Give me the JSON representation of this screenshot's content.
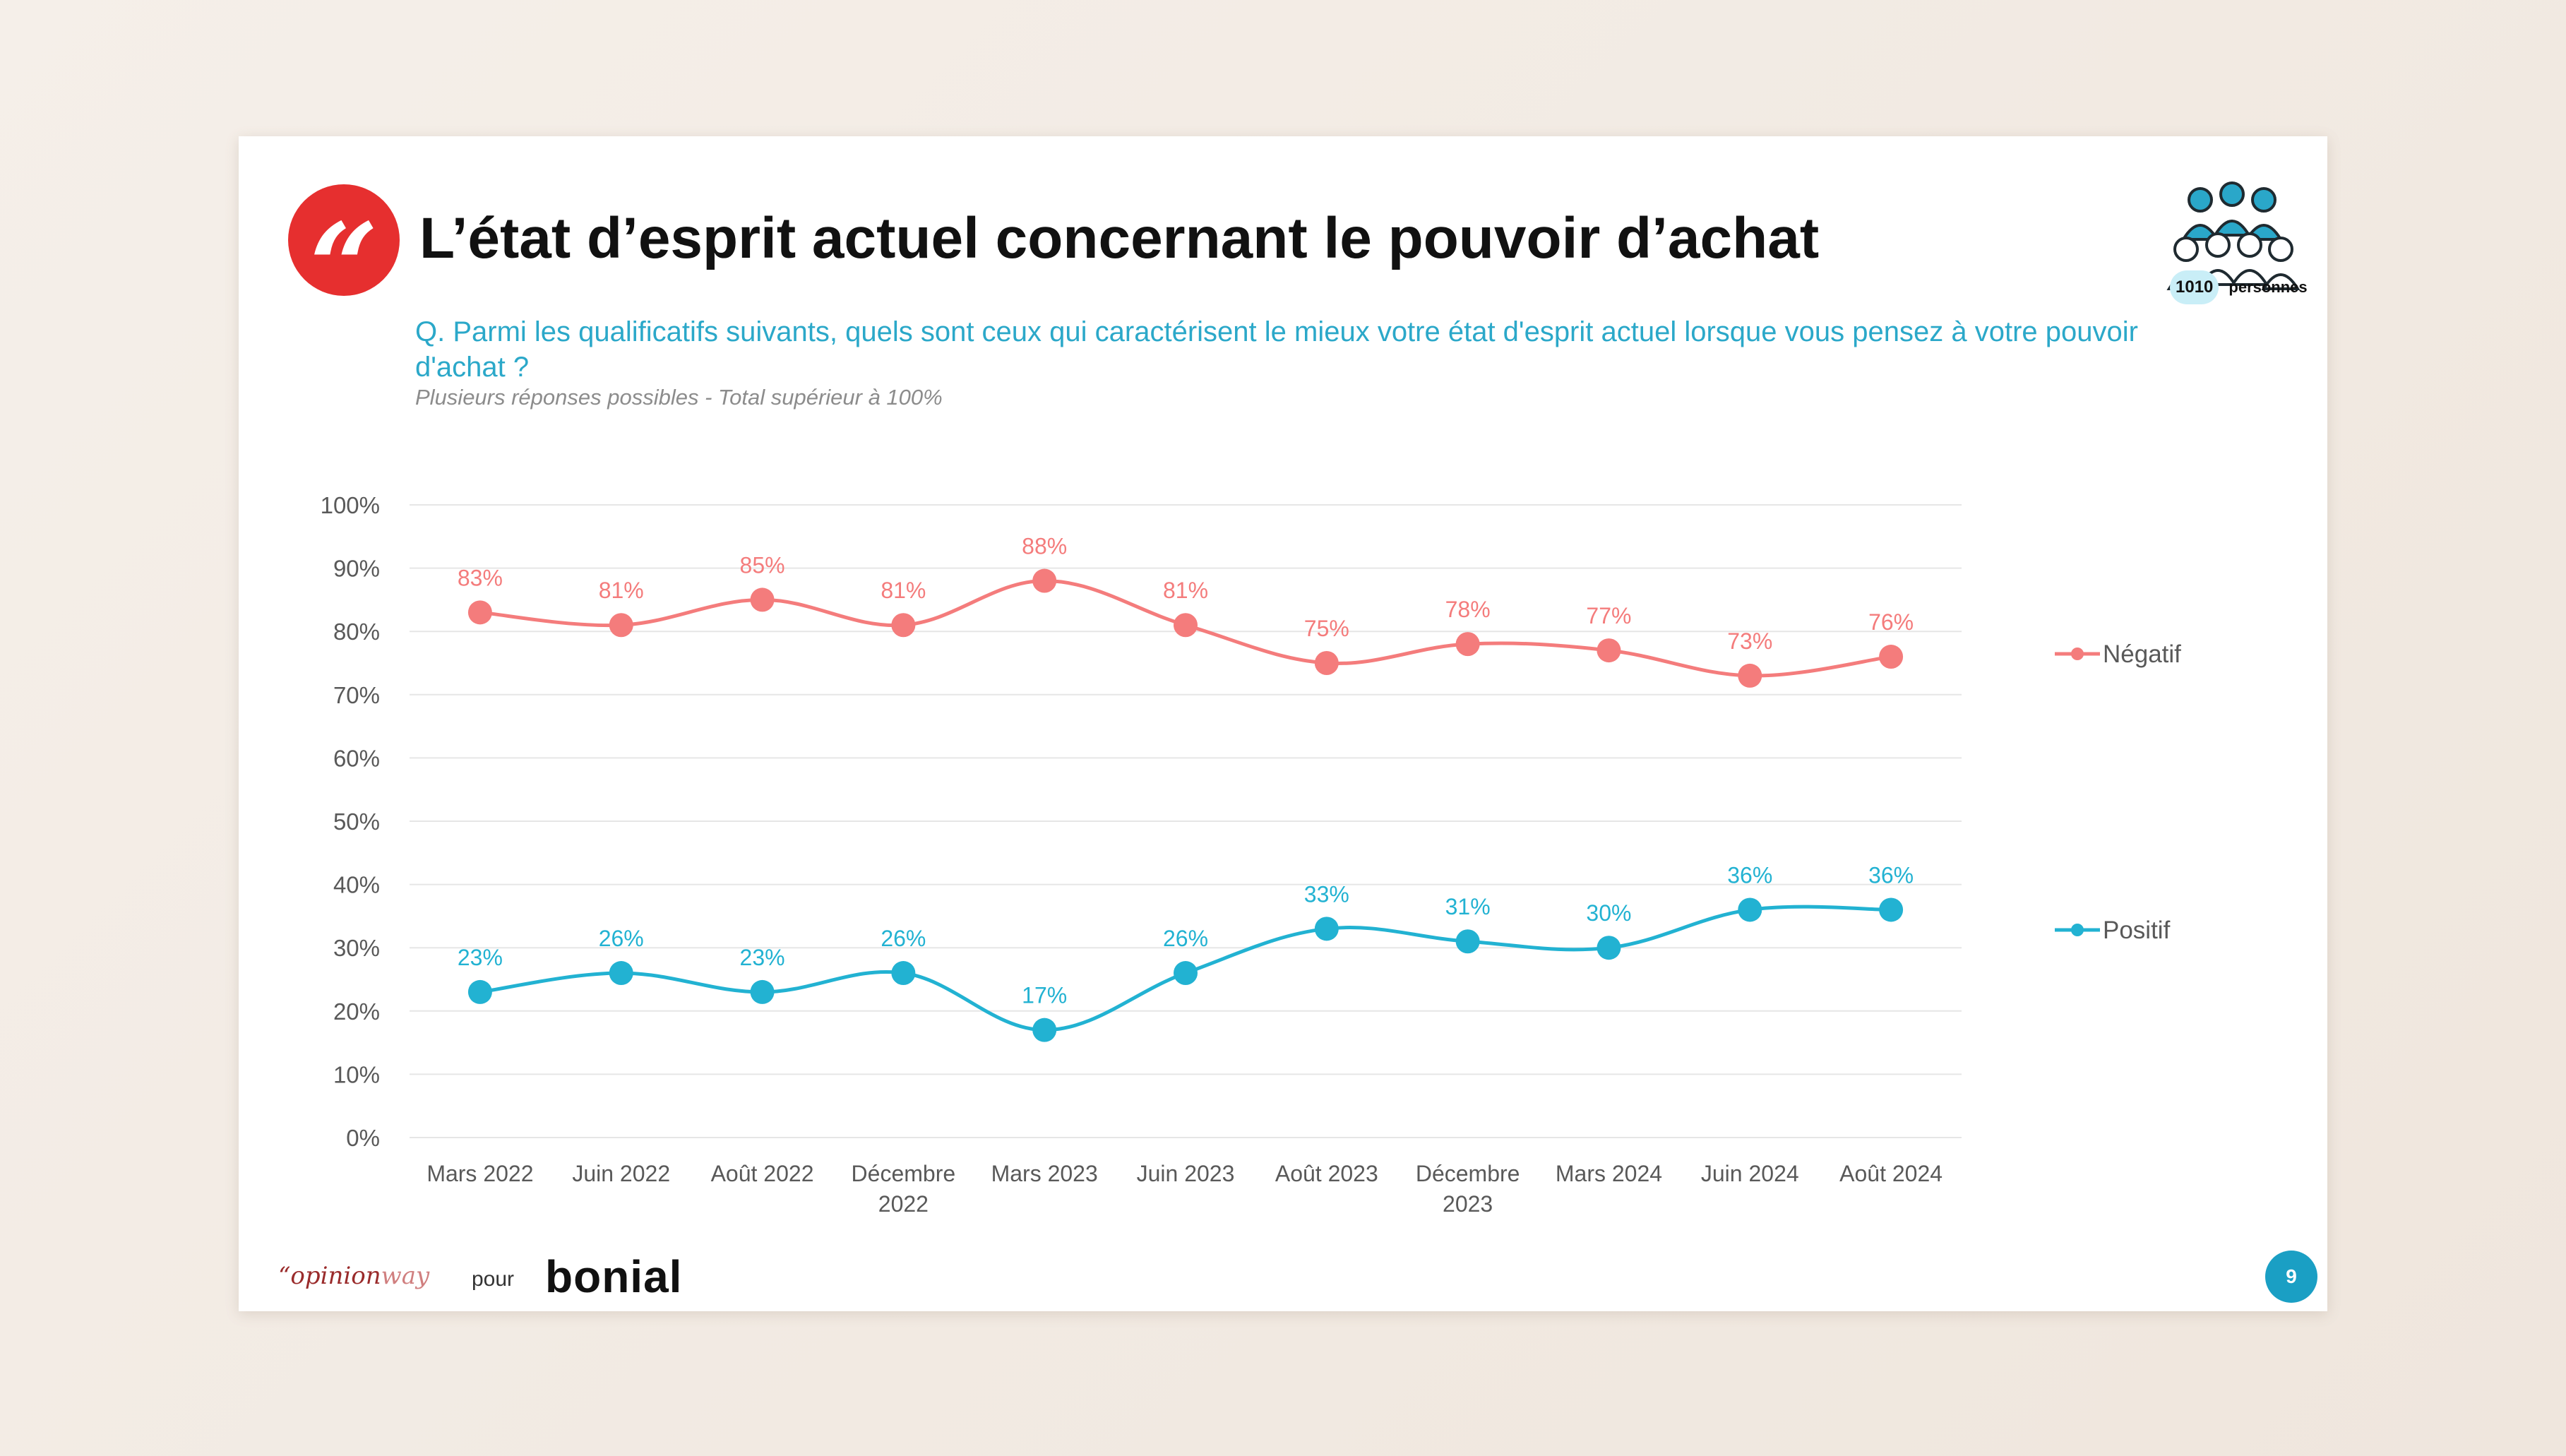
{
  "header": {
    "quote_glyph": "“",
    "title": "L’état d’esprit actuel concernant le pouvoir d’achat",
    "question": "Q. Parmi les qualificatifs suivants, quels sont ceux qui caractérisent le mieux votre état d'esprit actuel lorsque vous pensez à votre pouvoir d'achat ?",
    "note": "Plusieurs réponses possibles - Total supérieur à 100%",
    "sample_count": "1010",
    "sample_label": "personnes"
  },
  "footer": {
    "brand_opinion": "“opinion",
    "brand_way": "way",
    "pour": "pour",
    "client": "bonial",
    "page_number": "9"
  },
  "colors": {
    "negatif": "#f47c7c",
    "positif": "#22b2d2",
    "grid": "#e6e6e6",
    "axis_text": "#595959"
  },
  "chart_data": {
    "type": "line",
    "categories": [
      [
        "Mars 2022"
      ],
      [
        "Juin 2022"
      ],
      [
        "Août 2022"
      ],
      [
        "Décembre",
        "2022"
      ],
      [
        "Mars 2023"
      ],
      [
        "Juin 2023"
      ],
      [
        "Août 2023"
      ],
      [
        "Décembre",
        "2023"
      ],
      [
        "Mars 2024"
      ],
      [
        "Juin 2024"
      ],
      [
        "Août 2024"
      ]
    ],
    "series": [
      {
        "name": "Négatif",
        "color": "#f47c7c",
        "values": [
          83,
          81,
          85,
          81,
          88,
          81,
          75,
          78,
          77,
          73,
          76
        ]
      },
      {
        "name": "Positif",
        "color": "#22b2d2",
        "values": [
          23,
          26,
          23,
          26,
          17,
          26,
          33,
          31,
          30,
          36,
          36
        ]
      }
    ],
    "ylim": [
      0,
      100
    ],
    "yticks": [
      0,
      10,
      20,
      30,
      40,
      50,
      60,
      70,
      80,
      90,
      100
    ],
    "ytick_suffix": "%",
    "label_suffix": "%",
    "grid": true,
    "legend_position": "right"
  }
}
